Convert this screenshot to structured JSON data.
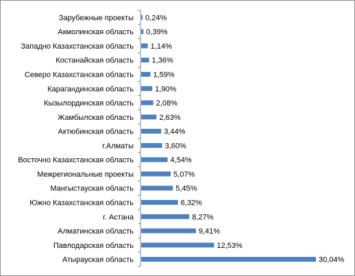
{
  "chart_data": {
    "type": "bar",
    "orientation": "horizontal",
    "title": "",
    "xlabel": "",
    "ylabel": "",
    "legend": "none",
    "grid": false,
    "value_suffix": "%",
    "decimal_separator": ",",
    "xlim": [
      0,
      30.04
    ],
    "bar_color": "#4f81bd",
    "axis_color": "#868686",
    "categories": [
      "Зарубежные проекты",
      "Акмолинская область",
      "Западно Казахстанская область",
      "Костанайская  область",
      "Северо Казахстанская область",
      "Карагандинская область",
      "Кызылордин­ская область",
      "Жамбылская область",
      "Актюбинская область",
      "г.Алматы",
      "Восточно Казахстанская область",
      "Межрегиональные проекты",
      "Мангыстауская область",
      "Южно Казахстанская область",
      "г. Астана",
      "Алматинская область",
      "Павлодарская область",
      "Атырауская область"
    ],
    "values": [
      0.24,
      0.39,
      1.14,
      1.36,
      1.59,
      1.9,
      2.08,
      2.63,
      3.44,
      3.6,
      4.54,
      5.07,
      5.45,
      6.32,
      8.27,
      9.41,
      12.53,
      30.04
    ]
  }
}
